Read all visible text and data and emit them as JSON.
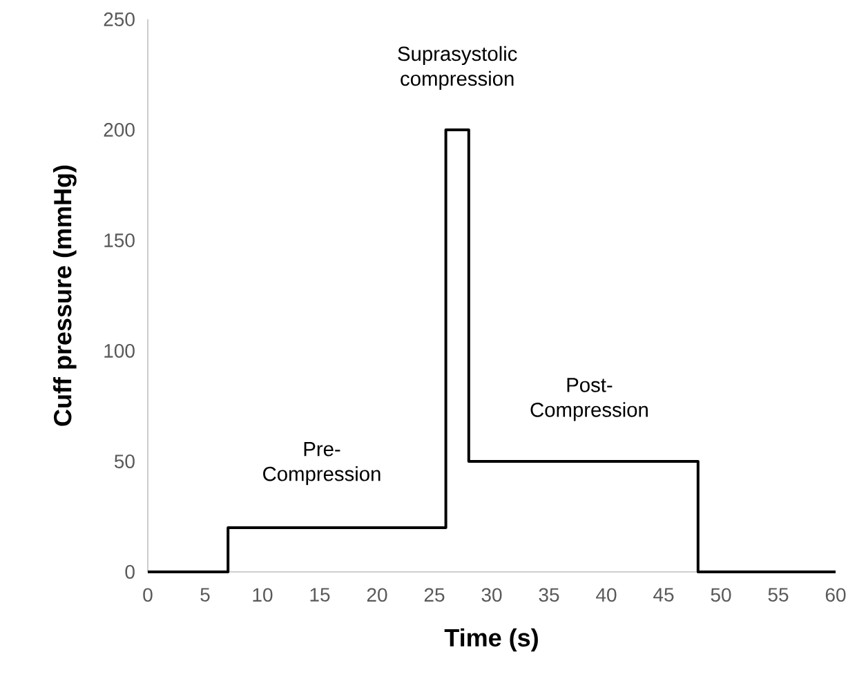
{
  "chart_data": {
    "type": "line",
    "xlabel": "Time (s)",
    "ylabel": "Cuff pressure (mmHg)",
    "x": [
      0,
      7,
      7,
      26,
      26,
      28,
      28,
      48,
      48,
      60
    ],
    "values": [
      0,
      0,
      20,
      20,
      200,
      200,
      50,
      50,
      0,
      0
    ],
    "color": "#000000",
    "xlim": [
      0,
      60
    ],
    "ylim": [
      0,
      250
    ],
    "xticks": [
      0,
      5,
      10,
      15,
      20,
      25,
      30,
      35,
      40,
      45,
      50,
      55,
      60
    ],
    "yticks": [
      0,
      50,
      100,
      150,
      200,
      250
    ],
    "grid": false,
    "marker": "none",
    "line_style": "solid",
    "annotations": [
      "Suprasystolic compression",
      "Pre-Compression",
      "Post-Compression"
    ]
  }
}
